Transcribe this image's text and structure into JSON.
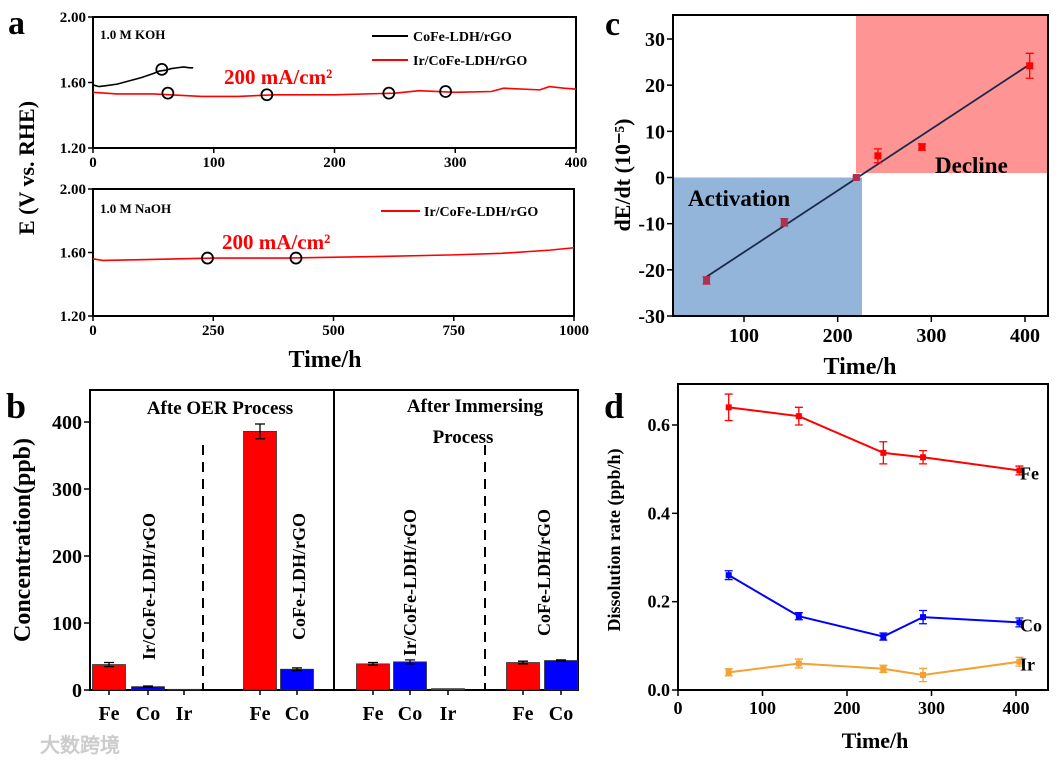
{
  "panel_labels": [
    "a",
    "b",
    "c",
    "d"
  ],
  "watermark": "大数跨境",
  "colors": {
    "red": "#ff0000",
    "black": "#000000",
    "blue": "#0000ff",
    "orange": "#f5a030",
    "blue_region": "#6f9ccc",
    "red_region": "#ff7070",
    "fit_line": "#1a2a4a"
  },
  "chart_data": [
    {
      "id": "a-top",
      "type": "line",
      "annotation": "1.0 M KOH",
      "current": "200 mA/cm²",
      "xlim": [
        0,
        400
      ],
      "ylim": [
        1.2,
        2.0
      ],
      "xticks": [
        "0",
        "100",
        "200",
        "300",
        "400"
      ],
      "yticks": [
        "1.20",
        "1.60",
        "2.00"
      ],
      "ylabel": "E (V vs. RHE)",
      "series": [
        {
          "name": "CoFe-LDH/rGO",
          "color": "#000000",
          "x": [
            0,
            5,
            10,
            20,
            30,
            40,
            50,
            55,
            60,
            65,
            70,
            75,
            80,
            83
          ],
          "y": [
            1.585,
            1.575,
            1.58,
            1.59,
            1.61,
            1.63,
            1.655,
            1.67,
            1.675,
            1.685,
            1.69,
            1.695,
            1.69,
            1.69
          ]
        },
        {
          "name": "Ir/CoFe-LDH/rGO",
          "color": "#ff0000",
          "x": [
            0,
            20,
            50,
            90,
            120,
            150,
            200,
            250,
            270,
            300,
            330,
            340,
            370,
            378,
            390,
            400
          ],
          "y": [
            1.54,
            1.53,
            1.53,
            1.515,
            1.515,
            1.525,
            1.525,
            1.535,
            1.55,
            1.54,
            1.545,
            1.565,
            1.555,
            1.575,
            1.565,
            1.56
          ]
        }
      ],
      "markers": [
        {
          "x": 57,
          "y": 1.68
        },
        {
          "x": 62,
          "y": 1.535
        },
        {
          "x": 144,
          "y": 1.525
        },
        {
          "x": 245,
          "y": 1.535
        },
        {
          "x": 292,
          "y": 1.545
        }
      ]
    },
    {
      "id": "a-bottom",
      "type": "line",
      "annotation": "1.0 M NaOH",
      "current": "200 mA/cm²",
      "xlim": [
        0,
        1000
      ],
      "ylim": [
        1.2,
        2.0
      ],
      "xticks": [
        "0",
        "250",
        "500",
        "750",
        "1000"
      ],
      "yticks": [
        "1.20",
        "1.60",
        "2.00"
      ],
      "xlabel": "Time/h",
      "series": [
        {
          "name": "Ir/CoFe-LDH/rGO",
          "color": "#ff0000",
          "x": [
            0,
            20,
            100,
            250,
            400,
            600,
            750,
            850,
            950,
            1000
          ],
          "y": [
            1.56,
            1.55,
            1.555,
            1.565,
            1.565,
            1.575,
            1.585,
            1.595,
            1.615,
            1.63
          ]
        }
      ],
      "markers": [
        {
          "x": 238,
          "y": 1.565
        },
        {
          "x": 422,
          "y": 1.565
        }
      ]
    },
    {
      "id": "b",
      "type": "bar",
      "ylabel": "Concentration(ppb)",
      "ylim": [
        0,
        450
      ],
      "yticks": [
        "0",
        "100",
        "200",
        "300",
        "400"
      ],
      "sections": [
        "Afte OER Process",
        "After Immersing Process"
      ],
      "group_labels": [
        "Ir/CoFe-LDH/rGO",
        "CoFe-LDH/rGO",
        "Ir/CoFe-LDH/rGO",
        "CoFe-LDH/rGO"
      ],
      "bars": [
        {
          "element": "Fe",
          "group": 0,
          "value": 38,
          "err": 3,
          "color": "#ff0000"
        },
        {
          "element": "Co",
          "group": 0,
          "value": 5,
          "err": 1,
          "color": "#0000ff"
        },
        {
          "element": "Ir",
          "group": 0,
          "value": 1,
          "err": 0,
          "color": "#8b4513"
        },
        {
          "element": "Fe",
          "group": 1,
          "value": 386,
          "err": 11,
          "color": "#ff0000"
        },
        {
          "element": "Co",
          "group": 1,
          "value": 31,
          "err": 2,
          "color": "#0000ff"
        },
        {
          "element": "Fe",
          "group": 2,
          "value": 39,
          "err": 2,
          "color": "#ff0000"
        },
        {
          "element": "Co",
          "group": 2,
          "value": 42,
          "err": 3,
          "color": "#0000ff"
        },
        {
          "element": "Ir",
          "group": 2,
          "value": 2,
          "err": 0,
          "color": "#8b4513"
        },
        {
          "element": "Fe",
          "group": 3,
          "value": 41,
          "err": 2,
          "color": "#ff0000"
        },
        {
          "element": "Co",
          "group": 3,
          "value": 44,
          "err": 1,
          "color": "#0000ff"
        }
      ]
    },
    {
      "id": "c",
      "type": "scatter",
      "xlabel": "Time/h",
      "ylabel": "dE/dt (10⁻⁵)",
      "xlim": [
        25,
        425
      ],
      "ylim": [
        -30,
        35
      ],
      "xticks": [
        "100",
        "200",
        "300",
        "400"
      ],
      "yticks": [
        "-30",
        "-20",
        "-10",
        "0",
        "10",
        "20",
        "30"
      ],
      "regions": [
        {
          "label": "Activation",
          "x": [
            25,
            227
          ],
          "y": [
            -30,
            0
          ]
        },
        {
          "label": "Decline",
          "x": [
            221,
            425
          ],
          "y": [
            0,
            35
          ]
        }
      ],
      "points": [
        {
          "x": 60,
          "y": -22.3,
          "err": 0.8
        },
        {
          "x": 143,
          "y": -9.7,
          "err": 0.8
        },
        {
          "x": 220,
          "y": 0,
          "err": 0.3
        },
        {
          "x": 243,
          "y": 4.7,
          "err": 1.5
        },
        {
          "x": 290,
          "y": 6.6,
          "err": 0.7
        },
        {
          "x": 405,
          "y": 24.2,
          "err": 2.7
        }
      ],
      "fit": {
        "x": [
          60,
          405
        ],
        "y": [
          -21.5,
          24.5
        ]
      }
    },
    {
      "id": "d",
      "type": "line",
      "xlabel": "Time/h",
      "ylabel": "Dissolution rate (ppb/h)",
      "xlim": [
        0,
        450
      ],
      "ylim": [
        0,
        0.68
      ],
      "xticks": [
        "0",
        "100",
        "200",
        "300",
        "400"
      ],
      "yticks": [
        "0.0",
        "0.2",
        "0.4",
        "0.6"
      ],
      "x": [
        60,
        143,
        243,
        290,
        404
      ],
      "series": [
        {
          "name": "Fe",
          "color": "#ff0000",
          "values": [
            0.64,
            0.62,
            0.537,
            0.527,
            0.497
          ],
          "err": [
            0.03,
            0.02,
            0.025,
            0.015,
            0.01
          ]
        },
        {
          "name": "Co",
          "color": "#0000ff",
          "values": [
            0.26,
            0.167,
            0.121,
            0.165,
            0.153
          ],
          "err": [
            0.01,
            0.008,
            0.008,
            0.015,
            0.01
          ]
        },
        {
          "name": "Ir",
          "color": "#f5a030",
          "values": [
            0.04,
            0.06,
            0.048,
            0.034,
            0.064
          ],
          "err": [
            0.008,
            0.01,
            0.008,
            0.015,
            0.01
          ]
        }
      ]
    }
  ]
}
